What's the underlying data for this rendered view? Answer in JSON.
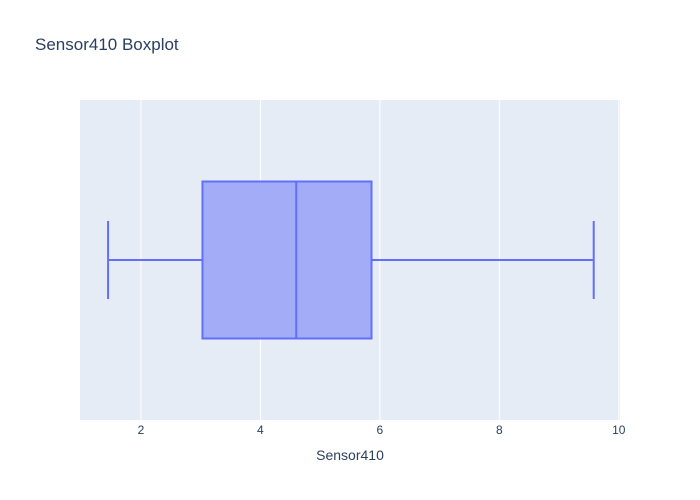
{
  "chart_data": {
    "type": "box",
    "title": "Sensor410 Boxplot",
    "xlabel": "Sensor410",
    "ylabel": "",
    "orientation": "horizontal",
    "xlim": [
      0.98,
      10.02
    ],
    "x_ticks": [
      2,
      4,
      6,
      8,
      10
    ],
    "grid": true,
    "series": [
      {
        "min": 1.45,
        "q1": 3.03,
        "median": 4.6,
        "q3": 5.86,
        "max": 9.58
      }
    ]
  },
  "colors": {
    "plot_bg": "#e5ecf6",
    "grid": "#ffffff",
    "box_fill": "#a3acf6",
    "box_line": "#636efa",
    "text": "#2a3f5f"
  }
}
